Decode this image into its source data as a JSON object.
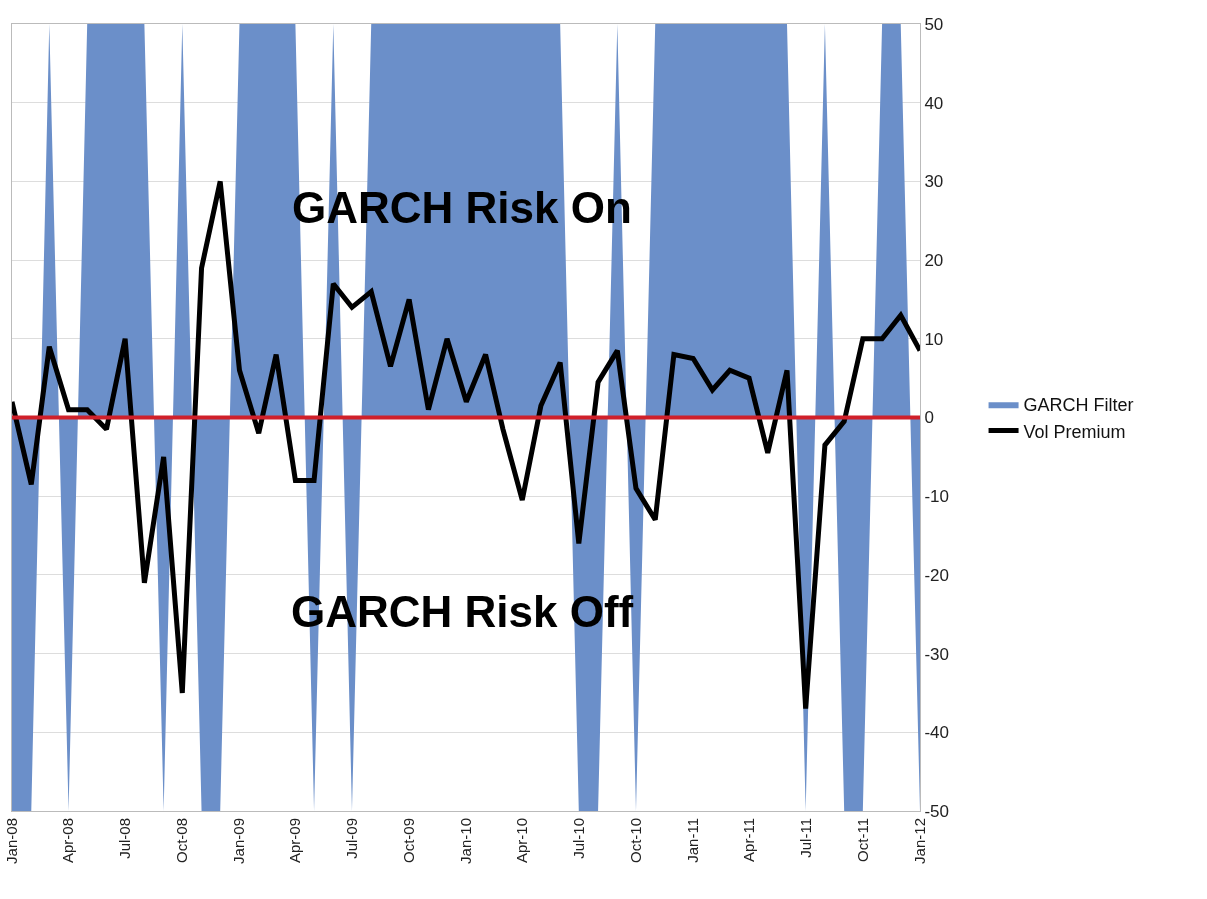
{
  "chart_data": {
    "type": "area",
    "x": [
      "2008-01",
      "2008-02",
      "2008-03",
      "2008-04",
      "2008-05",
      "2008-06",
      "2008-07",
      "2008-08",
      "2008-09",
      "2008-10",
      "2008-11",
      "2008-12",
      "2009-01",
      "2009-02",
      "2009-03",
      "2009-04",
      "2009-05",
      "2009-06",
      "2009-07",
      "2009-08",
      "2009-09",
      "2009-10",
      "2009-11",
      "2009-12",
      "2010-01",
      "2010-02",
      "2010-03",
      "2010-04",
      "2010-05",
      "2010-06",
      "2010-07",
      "2010-08",
      "2010-09",
      "2010-10",
      "2010-11",
      "2010-12",
      "2011-01",
      "2011-02",
      "2011-03",
      "2011-04",
      "2011-05",
      "2011-06",
      "2011-07",
      "2011-08",
      "2011-09",
      "2011-10",
      "2011-11",
      "2011-12",
      "2012-01"
    ],
    "series": [
      {
        "name": "GARCH Filter",
        "type": "area",
        "color": "#6b8fc9",
        "values": [
          -50,
          -50,
          50,
          -50,
          50,
          50,
          50,
          50,
          -50,
          50,
          -50,
          -50,
          50,
          50,
          50,
          50,
          -50,
          50,
          -50,
          50,
          50,
          50,
          50,
          50,
          50,
          50,
          50,
          50,
          50,
          50,
          -50,
          -50,
          50,
          -50,
          50,
          50,
          50,
          50,
          50,
          50,
          50,
          50,
          -50,
          50,
          -50,
          -50,
          50,
          50,
          -50
        ]
      },
      {
        "name": "Vol Premium",
        "type": "line",
        "color": "#000000",
        "values": [
          2,
          -8.5,
          9,
          1,
          1,
          -1.5,
          10,
          -21,
          -5,
          -35,
          19,
          30,
          6,
          -2,
          8,
          -8,
          -8,
          17,
          14,
          16,
          6.5,
          15,
          1,
          10,
          2,
          8,
          -1.5,
          -10.5,
          1.5,
          7,
          -16,
          4.5,
          8.5,
          -9,
          -13,
          8,
          7.5,
          3.5,
          6,
          5,
          -4.5,
          6,
          -37,
          -3.5,
          -0.5,
          10,
          10,
          13,
          8.5
        ]
      }
    ],
    "xlim": [
      "2008-01",
      "2012-01"
    ],
    "xticks": [
      {
        "value": "2008-01",
        "label": "Jan-08"
      },
      {
        "value": "2008-04",
        "label": "Apr-08"
      },
      {
        "value": "2008-07",
        "label": "Jul-08"
      },
      {
        "value": "2008-10",
        "label": "Oct-08"
      },
      {
        "value": "2009-01",
        "label": "Jan-09"
      },
      {
        "value": "2009-04",
        "label": "Apr-09"
      },
      {
        "value": "2009-07",
        "label": "Jul-09"
      },
      {
        "value": "2009-10",
        "label": "Oct-09"
      },
      {
        "value": "2010-01",
        "label": "Jan-10"
      },
      {
        "value": "2010-04",
        "label": "Apr-10"
      },
      {
        "value": "2010-07",
        "label": "Jul-10"
      },
      {
        "value": "2010-10",
        "label": "Oct-10"
      },
      {
        "value": "2011-01",
        "label": "Jan-11"
      },
      {
        "value": "2011-04",
        "label": "Apr-11"
      },
      {
        "value": "2011-07",
        "label": "Jul-11"
      },
      {
        "value": "2011-10",
        "label": "Oct-11"
      },
      {
        "value": "2012-01",
        "label": "Jan-12"
      }
    ],
    "ylim": [
      -50,
      50
    ],
    "yticks": [
      -50,
      -40,
      -30,
      -20,
      -10,
      0,
      10,
      20,
      30,
      40,
      50
    ],
    "grid": "y",
    "legend": "right",
    "ref_lines": [
      {
        "axis": "y",
        "value": 0,
        "color": "#d0202a"
      }
    ],
    "annotations": [
      "GARCH Risk On",
      "GARCH Risk Off"
    ]
  }
}
